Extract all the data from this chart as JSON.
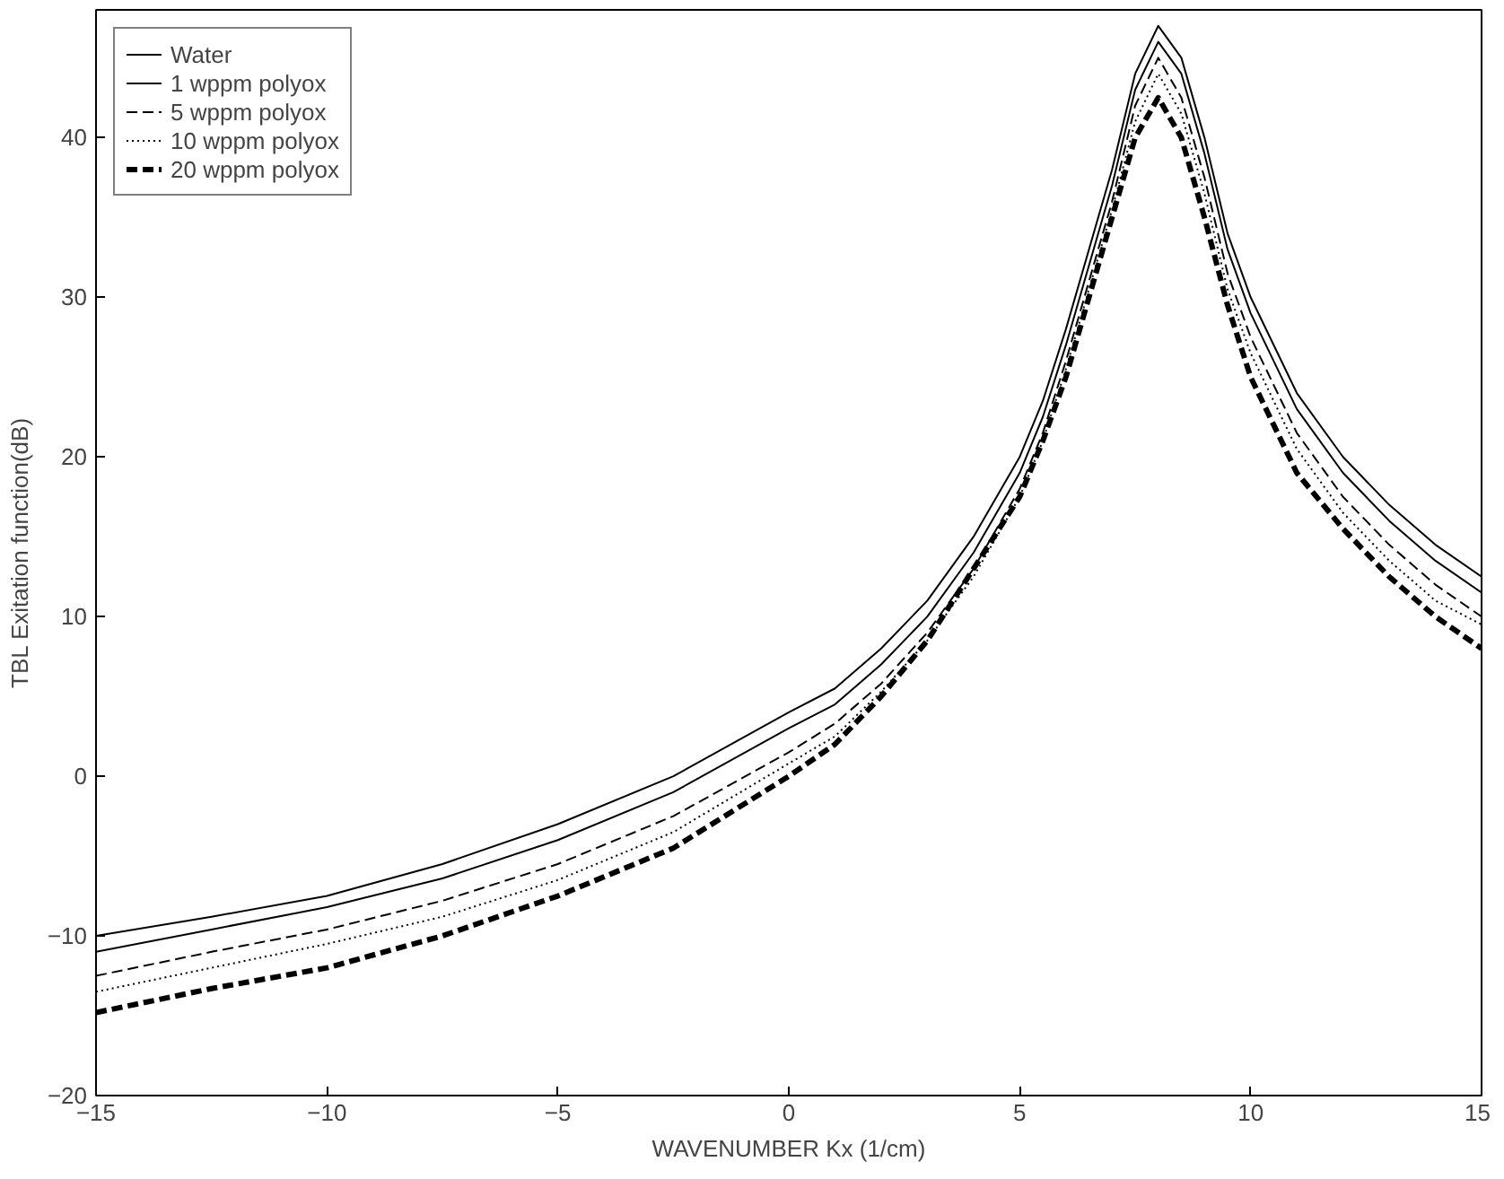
{
  "chart_data": {
    "type": "line",
    "xlabel": "WAVENUMBER Kx (1/cm)",
    "ylabel": "TBL Exitation function(dB)",
    "xlim": [
      -15,
      15
    ],
    "ylim": [
      -20,
      48
    ],
    "xticks": [
      -15,
      -10,
      -5,
      0,
      5,
      10,
      15
    ],
    "yticks": [
      -20,
      -10,
      0,
      10,
      20,
      30,
      40
    ],
    "grid": false,
    "legend": "top left",
    "marker": "none",
    "x": [
      -15,
      -12.5,
      -10,
      -7.5,
      -5,
      -2.5,
      0,
      1,
      2,
      3,
      4,
      5,
      5.5,
      6,
      6.5,
      7,
      7.5,
      8,
      8.5,
      9,
      9.5,
      10,
      11,
      12,
      13,
      14,
      15
    ],
    "series": [
      {
        "name": "Water",
        "color": "#000000",
        "line_style": "solid",
        "values": [
          -10,
          -8.8,
          -7.5,
          -5.5,
          -3,
          0,
          4,
          5.5,
          8,
          11,
          15,
          20,
          23.5,
          28,
          33,
          38,
          44,
          47,
          45,
          40,
          34,
          30,
          24,
          20,
          17,
          14.5,
          12.5
        ]
      },
      {
        "name": "1 wppm polyox",
        "color": "#000000",
        "line_style": "solid",
        "values": [
          -11,
          -9.6,
          -8.2,
          -6.4,
          -4,
          -1,
          3,
          4.5,
          7,
          10,
          14,
          19,
          22.5,
          27,
          32,
          37,
          43,
          46,
          44,
          39,
          33,
          29,
          23,
          19,
          16,
          13.5,
          11.5
        ]
      },
      {
        "name": "5 wppm polyox",
        "color": "#000000",
        "line_style": "dashdot",
        "values": [
          -12.5,
          -11,
          -9.6,
          -7.8,
          -5.5,
          -2.5,
          1.5,
          3.3,
          5.8,
          9,
          13,
          18,
          21.5,
          26,
          31,
          36,
          42,
          45,
          42.5,
          37.5,
          31.5,
          27.5,
          21.5,
          17.5,
          14.5,
          12,
          10
        ]
      },
      {
        "name": "10 wppm polyox",
        "color": "#000000",
        "line_style": "dotted",
        "values": [
          -13.5,
          -12,
          -10.5,
          -8.8,
          -6.5,
          -3.5,
          0.8,
          2.5,
          5.3,
          8.5,
          12.5,
          17.5,
          21,
          25.5,
          30.5,
          35.5,
          41,
          44,
          41.5,
          36.5,
          30.5,
          26.5,
          20.5,
          16.5,
          13.5,
          11,
          9.5
        ]
      },
      {
        "name": "20 wppm polyox",
        "color": "#000000",
        "line_style": "dashed",
        "values": [
          -14.8,
          -13.3,
          -12,
          -10,
          -7.5,
          -4.5,
          0,
          2,
          5,
          8.5,
          13,
          17.5,
          21,
          25,
          30,
          35,
          40,
          42.5,
          40,
          35,
          29.5,
          25,
          19,
          15.5,
          12.5,
          10,
          8
        ]
      }
    ]
  }
}
